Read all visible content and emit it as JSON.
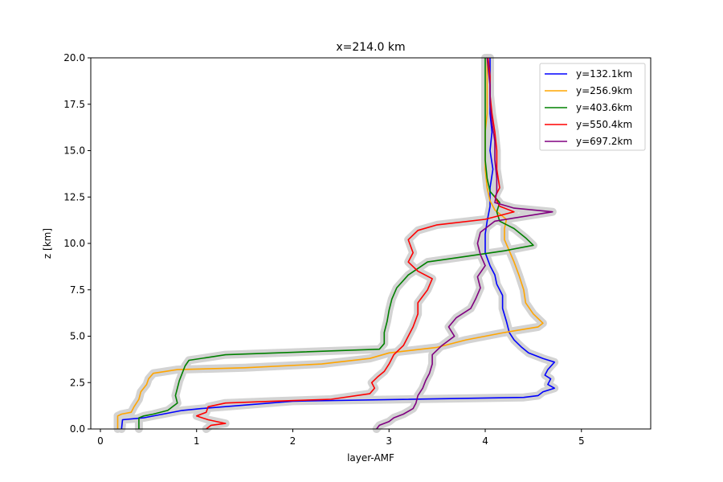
{
  "chart_data": {
    "type": "line",
    "title": "x=214.0 km",
    "xlabel": "layer-AMF",
    "ylabel": "z [km]",
    "xlim": [
      -0.1,
      5.72
    ],
    "ylim": [
      0,
      20
    ],
    "xticks": [
      "0",
      "1",
      "2",
      "3",
      "4",
      "5"
    ],
    "yticks": [
      "0.0",
      "2.5",
      "5.0",
      "7.5",
      "10.0",
      "12.5",
      "15.0",
      "17.5",
      "20.0"
    ],
    "grid": false,
    "legend_position": "top-right",
    "uncertainty_band_color": "#d3d3d3",
    "series": [
      {
        "name": "y=132.1km",
        "color": "#0000ff",
        "points": [
          [
            0.22,
            0
          ],
          [
            0.23,
            0.5
          ],
          [
            0.45,
            0.6
          ],
          [
            0.65,
            0.8
          ],
          [
            0.85,
            1.0
          ],
          [
            1.05,
            1.1
          ],
          [
            2.0,
            1.5
          ],
          [
            4.4,
            1.7
          ],
          [
            4.55,
            1.8
          ],
          [
            4.6,
            2.0
          ],
          [
            4.72,
            2.2
          ],
          [
            4.65,
            2.4
          ],
          [
            4.68,
            2.7
          ],
          [
            4.62,
            2.9
          ],
          [
            4.65,
            3.2
          ],
          [
            4.72,
            3.6
          ],
          [
            4.6,
            3.8
          ],
          [
            4.45,
            4.1
          ],
          [
            4.38,
            4.4
          ],
          [
            4.3,
            4.8
          ],
          [
            4.25,
            5.2
          ],
          [
            4.22,
            5.8
          ],
          [
            4.18,
            6.5
          ],
          [
            4.18,
            7.2
          ],
          [
            4.12,
            7.8
          ],
          [
            4.1,
            8.3
          ],
          [
            4.05,
            8.8
          ],
          [
            4.0,
            9.5
          ],
          [
            4.0,
            10.5
          ],
          [
            4.02,
            11.2
          ],
          [
            4.05,
            12.0
          ],
          [
            4.05,
            13.0
          ],
          [
            4.08,
            14.0
          ],
          [
            4.05,
            15.0
          ],
          [
            4.07,
            16.0
          ],
          [
            4.05,
            17.0
          ],
          [
            4.05,
            18.0
          ],
          [
            4.05,
            19.0
          ],
          [
            4.05,
            20.0
          ]
        ]
      },
      {
        "name": "y=256.9km",
        "color": "#ffa500",
        "points": [
          [
            0.18,
            0
          ],
          [
            0.18,
            0.7
          ],
          [
            0.22,
            0.8
          ],
          [
            0.32,
            0.9
          ],
          [
            0.35,
            1.2
          ],
          [
            0.4,
            1.6
          ],
          [
            0.42,
            2.0
          ],
          [
            0.48,
            2.4
          ],
          [
            0.5,
            2.7
          ],
          [
            0.55,
            3.0
          ],
          [
            0.8,
            3.2
          ],
          [
            1.5,
            3.3
          ],
          [
            2.3,
            3.5
          ],
          [
            2.8,
            3.8
          ],
          [
            3.0,
            4.1
          ],
          [
            3.5,
            4.4
          ],
          [
            3.8,
            4.8
          ],
          [
            4.2,
            5.2
          ],
          [
            4.55,
            5.5
          ],
          [
            4.6,
            5.7
          ],
          [
            4.5,
            6.2
          ],
          [
            4.42,
            6.8
          ],
          [
            4.4,
            7.5
          ],
          [
            4.35,
            8.3
          ],
          [
            4.3,
            9.0
          ],
          [
            4.25,
            9.6
          ],
          [
            4.2,
            10.2
          ],
          [
            4.2,
            10.8
          ],
          [
            4.22,
            11.3
          ],
          [
            4.1,
            11.8
          ],
          [
            4.05,
            12.3
          ],
          [
            4.02,
            13.0
          ],
          [
            4.0,
            14.0
          ],
          [
            4.0,
            15.0
          ],
          [
            4.0,
            16.0
          ],
          [
            4.02,
            17.0
          ],
          [
            4.02,
            18.0
          ],
          [
            4.02,
            19.0
          ],
          [
            4.02,
            20.0
          ]
        ]
      },
      {
        "name": "y=403.6km",
        "color": "#008000",
        "points": [
          [
            0.4,
            0
          ],
          [
            0.4,
            0.6
          ],
          [
            0.45,
            0.7
          ],
          [
            0.55,
            0.8
          ],
          [
            0.7,
            1.0
          ],
          [
            0.75,
            1.2
          ],
          [
            0.8,
            1.4
          ],
          [
            0.78,
            1.8
          ],
          [
            0.8,
            2.2
          ],
          [
            0.82,
            2.6
          ],
          [
            0.85,
            3.0
          ],
          [
            0.88,
            3.4
          ],
          [
            0.92,
            3.7
          ],
          [
            1.3,
            4.0
          ],
          [
            2.9,
            4.3
          ],
          [
            2.95,
            4.6
          ],
          [
            2.95,
            5.2
          ],
          [
            2.98,
            5.8
          ],
          [
            3.0,
            6.4
          ],
          [
            3.03,
            7.0
          ],
          [
            3.08,
            7.6
          ],
          [
            3.2,
            8.3
          ],
          [
            3.4,
            9.0
          ],
          [
            3.8,
            9.3
          ],
          [
            4.2,
            9.6
          ],
          [
            4.5,
            9.9
          ],
          [
            4.42,
            10.3
          ],
          [
            4.3,
            10.8
          ],
          [
            4.15,
            11.2
          ],
          [
            4.12,
            11.7
          ],
          [
            4.15,
            12.2
          ],
          [
            4.05,
            12.8
          ],
          [
            4.02,
            13.5
          ],
          [
            4.0,
            14.5
          ],
          [
            4.0,
            15.5
          ],
          [
            4.0,
            16.5
          ],
          [
            4.0,
            17.5
          ],
          [
            4.0,
            18.5
          ],
          [
            4.0,
            20.0
          ]
        ]
      },
      {
        "name": "y=550.4km",
        "color": "#ff0000",
        "points": [
          [
            1.1,
            0
          ],
          [
            1.15,
            0.2
          ],
          [
            1.3,
            0.3
          ],
          [
            1.12,
            0.5
          ],
          [
            1.0,
            0.7
          ],
          [
            1.1,
            0.9
          ],
          [
            1.12,
            1.2
          ],
          [
            1.3,
            1.4
          ],
          [
            1.8,
            1.5
          ],
          [
            2.4,
            1.6
          ],
          [
            2.8,
            1.9
          ],
          [
            2.85,
            2.2
          ],
          [
            2.82,
            2.5
          ],
          [
            2.88,
            2.8
          ],
          [
            2.95,
            3.1
          ],
          [
            3.0,
            3.5
          ],
          [
            3.05,
            4.0
          ],
          [
            3.15,
            4.5
          ],
          [
            3.2,
            5.0
          ],
          [
            3.25,
            5.5
          ],
          [
            3.3,
            6.2
          ],
          [
            3.3,
            6.8
          ],
          [
            3.4,
            7.5
          ],
          [
            3.45,
            8.1
          ],
          [
            3.3,
            8.5
          ],
          [
            3.2,
            9.0
          ],
          [
            3.25,
            9.5
          ],
          [
            3.2,
            10.2
          ],
          [
            3.3,
            10.7
          ],
          [
            3.5,
            11.0
          ],
          [
            4.0,
            11.3
          ],
          [
            4.3,
            11.7
          ],
          [
            4.15,
            12.0
          ],
          [
            4.1,
            12.5
          ],
          [
            4.15,
            13.0
          ],
          [
            4.12,
            14.0
          ],
          [
            4.12,
            15.0
          ],
          [
            4.1,
            16.0
          ],
          [
            4.07,
            17.0
          ],
          [
            4.05,
            18.0
          ],
          [
            4.05,
            19.0
          ],
          [
            4.03,
            20.0
          ]
        ]
      },
      {
        "name": "y=697.2km",
        "color": "#800080",
        "points": [
          [
            2.87,
            0
          ],
          [
            2.9,
            0.2
          ],
          [
            3.0,
            0.4
          ],
          [
            3.05,
            0.6
          ],
          [
            3.15,
            0.8
          ],
          [
            3.25,
            1.1
          ],
          [
            3.28,
            1.4
          ],
          [
            3.3,
            1.8
          ],
          [
            3.35,
            2.2
          ],
          [
            3.38,
            2.6
          ],
          [
            3.42,
            3.0
          ],
          [
            3.45,
            3.5
          ],
          [
            3.45,
            4.0
          ],
          [
            3.55,
            4.5
          ],
          [
            3.68,
            5.0
          ],
          [
            3.62,
            5.5
          ],
          [
            3.7,
            6.0
          ],
          [
            3.85,
            6.5
          ],
          [
            3.9,
            7.0
          ],
          [
            3.95,
            7.6
          ],
          [
            3.92,
            8.2
          ],
          [
            4.0,
            8.8
          ],
          [
            3.95,
            9.4
          ],
          [
            3.92,
            10.0
          ],
          [
            3.95,
            10.6
          ],
          [
            4.1,
            11.2
          ],
          [
            4.7,
            11.7
          ],
          [
            4.3,
            11.9
          ],
          [
            4.1,
            12.2
          ],
          [
            4.12,
            12.8
          ],
          [
            4.12,
            13.5
          ],
          [
            4.1,
            14.5
          ],
          [
            4.1,
            15.5
          ],
          [
            4.07,
            16.5
          ],
          [
            4.05,
            17.5
          ],
          [
            4.05,
            18.5
          ],
          [
            4.02,
            20.0
          ]
        ]
      }
    ]
  }
}
